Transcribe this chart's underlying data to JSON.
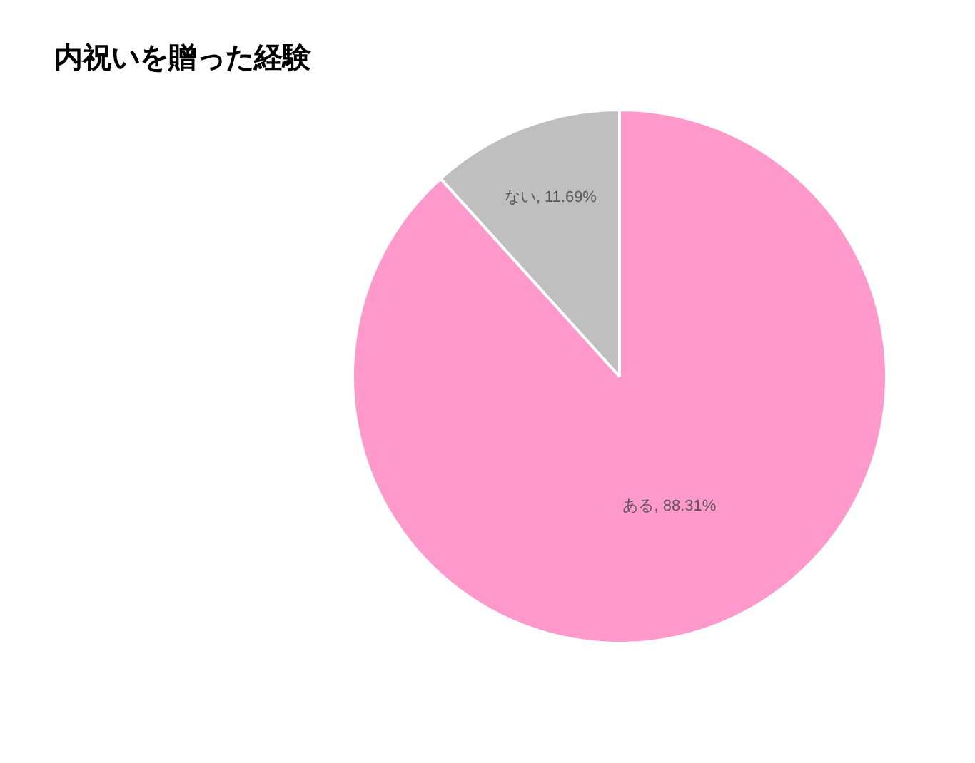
{
  "chart_data": {
    "type": "pie",
    "title": "内祝いを贈った経験",
    "categories": [
      "ある",
      "ない"
    ],
    "values": [
      88.31,
      11.69
    ],
    "colors": [
      "#ff99cc",
      "#bfbfbf"
    ],
    "value_labels": [
      "88.31%",
      "11.69%"
    ],
    "legend": false
  }
}
